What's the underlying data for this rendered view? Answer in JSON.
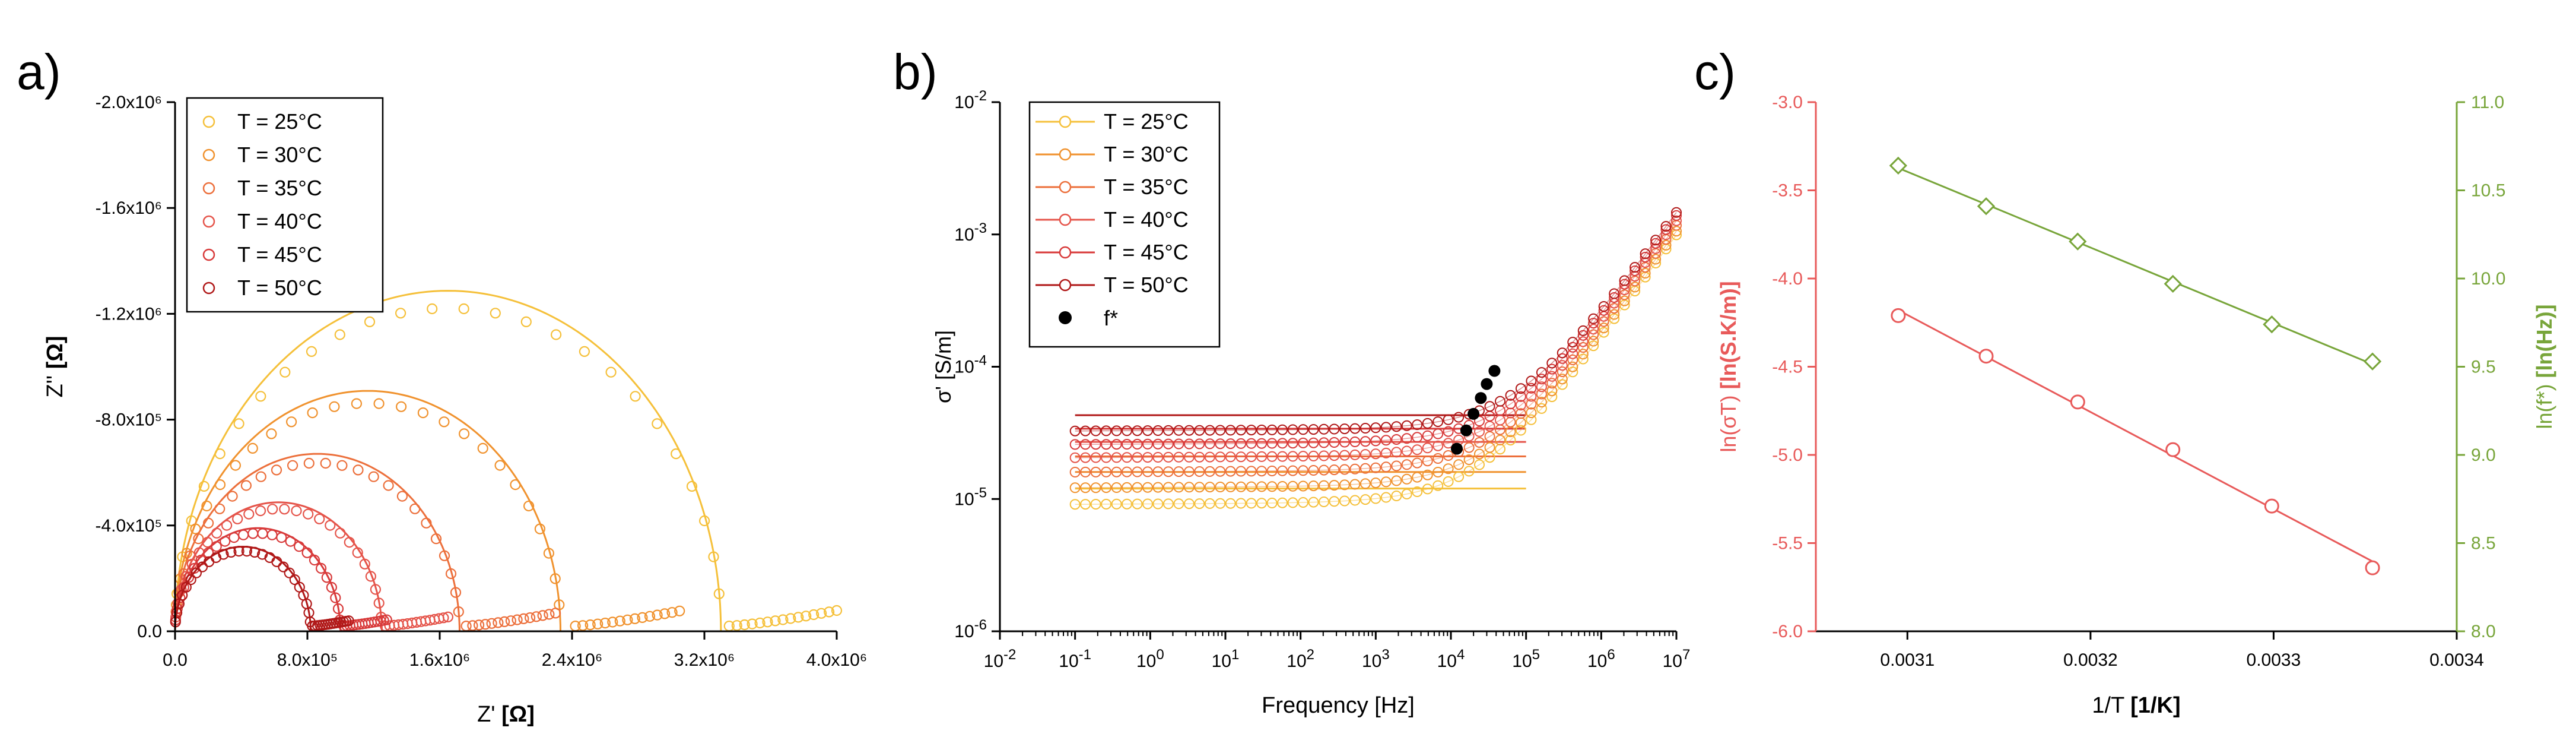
{
  "figure": {
    "panel_labels": [
      "a)",
      "b)",
      "c)"
    ]
  },
  "chart_data": [
    {
      "id": "a",
      "type": "scatter",
      "title": "",
      "xlabel": "Z'",
      "xlabel_unit": "[Ω]",
      "ylabel": "Z''",
      "ylabel_unit": "[Ω]",
      "xlim": [
        0,
        4000000
      ],
      "ylim": [
        0,
        -2000000
      ],
      "x_ticks": [
        0,
        800000,
        1600000,
        2400000,
        3200000,
        4000000
      ],
      "x_tick_labels": [
        "0.0",
        "8.0x10⁵",
        "1.6x10⁶",
        "2.4x10⁶",
        "3.2x10⁶",
        "4.0x10⁶"
      ],
      "y_ticks": [
        0,
        -400000,
        -800000,
        -1200000,
        -1600000,
        -2000000
      ],
      "y_tick_labels": [
        "0.0",
        "-4.0x10⁵",
        "-8.0x10⁵",
        "-1.2x10⁶",
        "-1.6x10⁶",
        "-2.0x10⁶"
      ],
      "legend_position": "top-left",
      "series": [
        {
          "name": "T = 25°C",
          "color": "#f5c03a",
          "R": 3300000,
          "tail_start": 3350000,
          "tail_end": 4000000
        },
        {
          "name": "T = 30°C",
          "color": "#f0922e",
          "R": 2330000,
          "tail_start": 2420000,
          "tail_end": 3050000
        },
        {
          "name": "T = 35°C",
          "color": "#ec6f3b",
          "R": 1720000,
          "tail_start": 1760000,
          "tail_end": 2300000
        },
        {
          "name": "T = 40°C",
          "color": "#e5544a",
          "R": 1250000,
          "tail_start": 1270000,
          "tail_end": 1650000
        },
        {
          "name": "T = 45°C",
          "color": "#d83a3a",
          "R": 1000000,
          "tail_start": 1020000,
          "tail_end": 1280000
        },
        {
          "name": "T = 50°C",
          "color": "#b01818",
          "R": 820000,
          "tail_start": 830000,
          "tail_end": 1050000
        }
      ]
    },
    {
      "id": "b",
      "type": "scatter",
      "title": "",
      "xlabel": "Frequency [Hz]",
      "ylabel": "σ' [S/m]",
      "x_scale": "log",
      "y_scale": "log",
      "xlim_exp": [
        -2,
        7
      ],
      "ylim_exp": [
        -6,
        -2
      ],
      "x_tick_exps": [
        -2,
        -1,
        0,
        1,
        2,
        3,
        4,
        5,
        6,
        7
      ],
      "y_tick_exps": [
        -6,
        -5,
        -4,
        -3,
        -2
      ],
      "legend_position": "top-left",
      "series": [
        {
          "name": "T = 25°C",
          "color": "#f5c03a",
          "sigma_dc": 1.2e-05,
          "f_star": 12000,
          "fit_value": 1.2e-05
        },
        {
          "name": "T = 30°C",
          "color": "#f0922e",
          "sigma_dc": 1.6e-05,
          "f_star": 16000,
          "fit_value": 1.6e-05
        },
        {
          "name": "T = 35°C",
          "color": "#ec6f3b",
          "sigma_dc": 2.1e-05,
          "f_star": 20000,
          "fit_value": 2.1e-05
        },
        {
          "name": "T = 40°C",
          "color": "#e5544a",
          "sigma_dc": 2.7e-05,
          "f_star": 25000,
          "fit_value": 2.7e-05
        },
        {
          "name": "T = 45°C",
          "color": "#d83a3a",
          "sigma_dc": 3.4e-05,
          "f_star": 30000,
          "fit_value": 3.4e-05
        },
        {
          "name": "T = 50°C",
          "color": "#b01818",
          "sigma_dc": 4.3e-05,
          "f_star": 38000,
          "fit_value": 4.3e-05
        }
      ],
      "f_star": {
        "name": "f*",
        "points": [
          [
            12000,
            2.4e-05
          ],
          [
            16000,
            3.3e-05
          ],
          [
            20000,
            4.4e-05
          ],
          [
            25000,
            5.8e-05
          ],
          [
            30000,
            7.4e-05
          ],
          [
            38000,
            9.3e-05
          ]
        ]
      }
    },
    {
      "id": "c",
      "type": "scatter",
      "title": "",
      "xlabel": "1/T",
      "xlabel_unit": "[1/K]",
      "ylabel_left": "ln(σT)",
      "ylabel_left_unit": "[ln(S.K/m)]",
      "ylabel_right": "ln(f*)",
      "ylabel_right_unit": "[ln(Hz)]",
      "xlim": [
        0.00305,
        0.0034
      ],
      "ylim_left": [
        -6,
        -3
      ],
      "ylim_right": [
        8,
        11
      ],
      "x_ticks": [
        0.0031,
        0.0032,
        0.0033,
        0.0034
      ],
      "x_tick_labels": [
        "0.0031",
        "0.0032",
        "0.0033",
        "0.0034"
      ],
      "y_left_ticks": [
        -6,
        -5.5,
        -5,
        -4.5,
        -4,
        -3.5,
        -3
      ],
      "y_left_tick_labels": [
        "-6.0",
        "-5.5",
        "-5.0",
        "-4.5",
        "-4.0",
        "-3.5",
        "-3.0"
      ],
      "y_right_ticks": [
        8,
        8.5,
        9,
        9.5,
        10,
        10.5,
        11
      ],
      "y_right_tick_labels": [
        "8.0",
        "8.5",
        "9.0",
        "9.5",
        "10.0",
        "10.5",
        "11.0"
      ],
      "left_color": "#e85a5a",
      "right_color": "#78a53a",
      "series": [
        {
          "name": "ln(σT)",
          "axis": "left",
          "marker": "circle",
          "color": "#e85a5a",
          "x": [
            0.003095,
            0.003143,
            0.003193,
            0.003245,
            0.003299,
            0.003354
          ],
          "y": [
            -4.21,
            -4.44,
            -4.7,
            -4.97,
            -5.29,
            -5.64
          ]
        },
        {
          "name": "ln(f*)",
          "axis": "right",
          "marker": "diamond",
          "color": "#78a53a",
          "x": [
            0.003095,
            0.003143,
            0.003193,
            0.003245,
            0.003299,
            0.003354
          ],
          "y": [
            10.64,
            10.41,
            10.21,
            9.97,
            9.74,
            9.53
          ]
        }
      ]
    }
  ]
}
